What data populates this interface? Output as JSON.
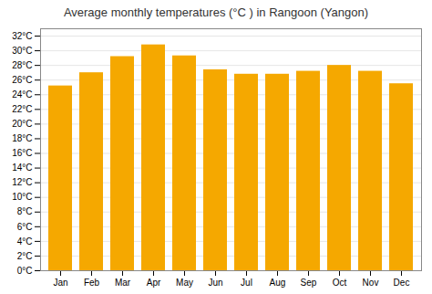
{
  "chart_data": {
    "type": "bar",
    "title": "Average monthly temperatures (°C ) in Rangoon (Yangon)",
    "categories": [
      "Jan",
      "Feb",
      "Mar",
      "Apr",
      "May",
      "Jun",
      "Jul",
      "Aug",
      "Sep",
      "Oct",
      "Nov",
      "Dec"
    ],
    "values": [
      25.2,
      27.0,
      29.2,
      30.8,
      29.3,
      27.4,
      26.8,
      26.8,
      27.2,
      28.0,
      27.2,
      25.5
    ],
    "color": "#F5A800",
    "ylim": [
      0,
      33
    ],
    "yticks": [
      {
        "value": 0,
        "label": "0°C"
      },
      {
        "value": 2,
        "label": "2°C"
      },
      {
        "value": 4,
        "label": "4°C"
      },
      {
        "value": 6,
        "label": "6°C"
      },
      {
        "value": 8,
        "label": "8°C"
      },
      {
        "value": 10,
        "label": "10°C"
      },
      {
        "value": 12,
        "label": "12°C"
      },
      {
        "value": 14,
        "label": "14°C"
      },
      {
        "value": 16,
        "label": "16°C"
      },
      {
        "value": 18,
        "label": "18°C"
      },
      {
        "value": 20,
        "label": "20°C"
      },
      {
        "value": 22,
        "label": "22°C"
      },
      {
        "value": 24,
        "label": "24°C"
      },
      {
        "value": 26,
        "label": "26°C"
      },
      {
        "value": 28,
        "label": "28°C"
      },
      {
        "value": 30,
        "label": "30°C"
      },
      {
        "value": 32,
        "label": "32°C"
      }
    ],
    "grid": true
  }
}
